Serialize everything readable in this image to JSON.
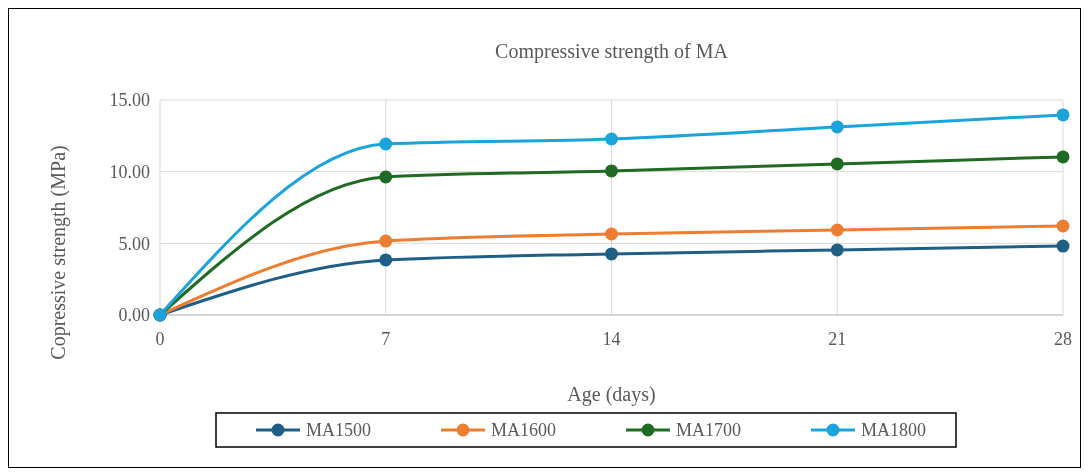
{
  "chart_data": {
    "type": "line",
    "title": "Compressive strength of MA",
    "xlabel": "Age (days)",
    "ylabel": "Copressive strength (MPa)",
    "x": [
      0,
      7,
      14,
      21,
      28
    ],
    "xlim": [
      0,
      28
    ],
    "xticks": [
      0,
      7,
      14,
      21,
      28
    ],
    "ylim": [
      0,
      15
    ],
    "yticks": [
      {
        "value": 0,
        "label": "0.00"
      },
      {
        "value": 5,
        "label": "5.00"
      },
      {
        "value": 10,
        "label": "10.00"
      },
      {
        "value": 15,
        "label": "15.00"
      }
    ],
    "grid": true,
    "legend": "bottom",
    "marker": "circle",
    "line_style": "solid",
    "series": [
      {
        "name": "MA1500",
        "color": "#1f5f86",
        "values": [
          0,
          3.84,
          4.26,
          4.54,
          4.81
        ]
      },
      {
        "name": "MA1600",
        "color": "#ed7d31",
        "values": [
          0,
          5.16,
          5.65,
          5.93,
          6.21
        ]
      },
      {
        "name": "MA1700",
        "color": "#1f6b23",
        "values": [
          0,
          9.63,
          10.05,
          10.54,
          11.03
        ]
      },
      {
        "name": "MA1800",
        "color": "#1ba3dc",
        "values": [
          0,
          11.93,
          12.28,
          13.12,
          13.96
        ]
      }
    ]
  }
}
